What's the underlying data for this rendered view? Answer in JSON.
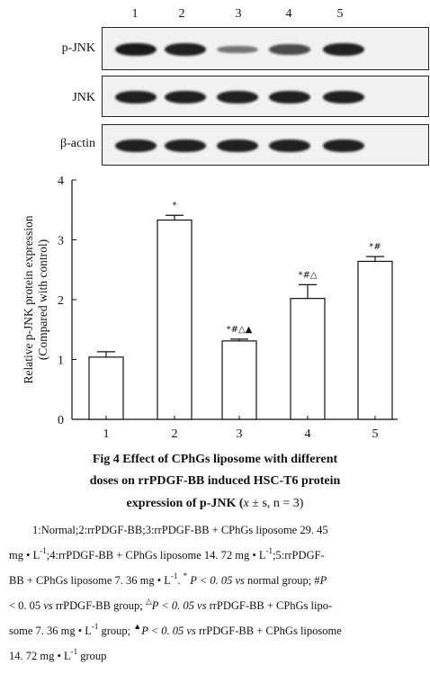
{
  "blot": {
    "lanes": [
      "1",
      "2",
      "3",
      "4",
      "5"
    ],
    "rows": [
      {
        "label": "p-JNK",
        "band_intensity": [
          1.0,
          0.95,
          0.35,
          0.65,
          0.95
        ]
      },
      {
        "label": "JNK",
        "band_intensity": [
          0.95,
          0.95,
          0.95,
          0.95,
          0.95
        ]
      },
      {
        "label": "β-actin",
        "band_intensity": [
          0.95,
          0.95,
          0.95,
          0.95,
          0.95
        ]
      }
    ]
  },
  "chart_data": {
    "type": "bar",
    "categories": [
      "1",
      "2",
      "3",
      "4",
      "5"
    ],
    "values": [
      1.04,
      3.33,
      1.31,
      2.02,
      2.64
    ],
    "errors": [
      0.09,
      0.08,
      0.03,
      0.23,
      0.08
    ],
    "annotations": [
      "",
      "*",
      "*#△▲",
      "*#△",
      "*#"
    ],
    "ylabel_line1": "Relative p-JNK protein expression",
    "ylabel_line2": "(Compared with control)",
    "yticks": [
      "0",
      "1",
      "2",
      "3",
      "4"
    ],
    "ylim": [
      0,
      4
    ],
    "bar_fill": "#ffffff",
    "bar_stroke": "#111111"
  },
  "figure": {
    "title_line1": "Fig 4    Effect of CPhGs liposome with different",
    "title_line2": "doses on rrPDGF-BB induced HSC-T6 protein",
    "title_line3_a": "expression of p-JNK  (",
    "title_line3_x": "x",
    "title_line3_b": " ± s,  n = 3)"
  },
  "caption": {
    "l1": "1:Normal;2:rrPDGF-BB;3:rrPDGF-BB + CPhGs liposome 29. 45",
    "l2_a": "mg • L",
    "l2_sup1": "-1",
    "l2_b": ";4:rrPDGF-BB + CPhGs liposome 14. 72 mg • L",
    "l2_sup2": "-1",
    "l2_c": ";5:rrPDGF-",
    "l3_a": "BB + CPhGs liposome 7. 36 mg • L",
    "l3_sup": "-1",
    "l3_b": ".  ",
    "l3_star": "*",
    "l3_c": " P < 0. 05 ",
    "l3_vs": "vs",
    "l3_d": " normal group; #",
    "l3_p": "P",
    "l4_a": "< 0. 05 ",
    "l4_vs1": "vs",
    "l4_b": " rrPDGF-BB group; ",
    "l4_tri": "△",
    "l4_c": "P < 0. 05 ",
    "l4_vs2": "vs",
    "l4_d": " rrPDGF-BB + CPhGs lipo-",
    "l5_a": "some 7. 36 mg • L",
    "l5_sup": "-1",
    "l5_b": " group; ",
    "l5_tri": "▲",
    "l5_c": "P < 0. 05 ",
    "l5_vs": "vs",
    "l5_d": " rrPDGF-BB + CPhGs liposome",
    "l6_a": "14. 72 mg • L",
    "l6_sup": "-1",
    "l6_b": " group"
  }
}
